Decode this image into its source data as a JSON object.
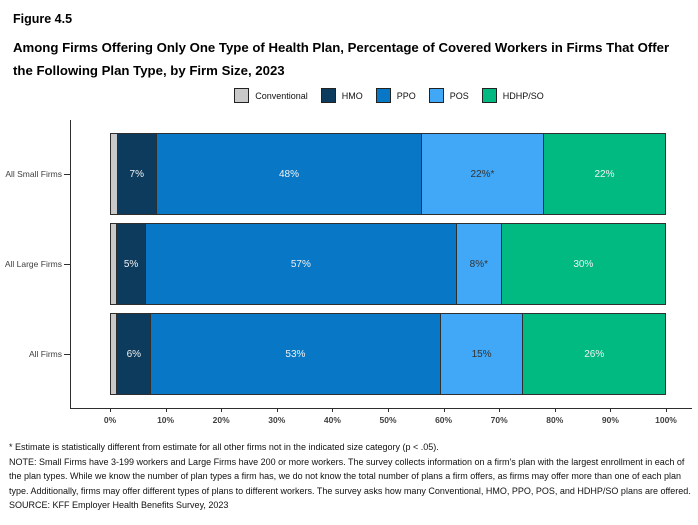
{
  "header": {
    "figure_label": "Figure 4.5",
    "title": "Among Firms Offering Only One Type of Health Plan, Percentage of Covered Workers in Firms That Offer the Following Plan Type, by Firm Size, 2023"
  },
  "footnotes": [
    "* Estimate is statistically different from estimate for all other firms not in the indicated size category (p < .05).",
    "NOTE: Small Firms have 3-199 workers and Large Firms have 200 or more workers. The survey collects information on a firm's plan with the largest enrollment in each of the plan types. While we know the number of plan types a firm has, we do not know the total number of plans a firm offers, as firms may offer more than one of each plan type. Additionally, firms may offer different types of plans to different workers. The survey asks how many Conventional, HMO, PPO, POS, and HDHP/SO plans are offered.",
    "SOURCE: KFF Employer Health Benefits Survey, 2023"
  ],
  "chart_data": {
    "type": "bar",
    "subtype": "horizontal-stacked",
    "categories": [
      "All Small Firms",
      "All Large Firms",
      "All Firms"
    ],
    "series": [
      {
        "name": "Conventional",
        "color": "#C9C9C9",
        "label_color": "#333333",
        "values": [
          1,
          1,
          1
        ],
        "labels": [
          "",
          "",
          ""
        ]
      },
      {
        "name": "HMO",
        "color": "#0C3B5D",
        "label_color": "#F2F2F2",
        "values": [
          7,
          5,
          6
        ],
        "labels": [
          "7%",
          "5%",
          "6%"
        ]
      },
      {
        "name": "PPO",
        "color": "#0878C6",
        "label_color": "#F2F2F2",
        "values": [
          48,
          57,
          53
        ],
        "labels": [
          "48%",
          "57%",
          "53%"
        ]
      },
      {
        "name": "POS",
        "color": "#41A8F7",
        "label_color": "#333333",
        "values": [
          22,
          8,
          15
        ],
        "labels": [
          "22%*",
          "8%*",
          "15%"
        ]
      },
      {
        "name": "HDHP/SO",
        "color": "#00BA81",
        "label_color": "#F2F2F2",
        "values": [
          22,
          30,
          26
        ],
        "labels": [
          "22%",
          "30%",
          "26%"
        ]
      }
    ],
    "x_ticks": [
      "0%",
      "10%",
      "20%",
      "30%",
      "40%",
      "50%",
      "60%",
      "70%",
      "80%",
      "90%",
      "100%"
    ],
    "xlim": [
      0,
      100
    ],
    "grid": false,
    "legend_position": "top-center",
    "axis_color": "#2e2e2e"
  }
}
